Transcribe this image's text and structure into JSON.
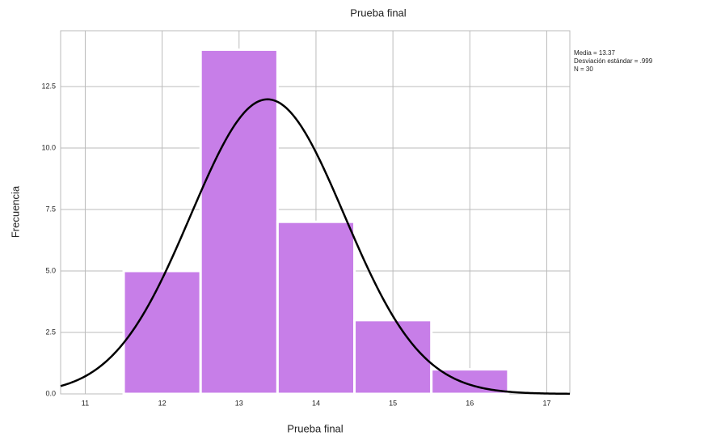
{
  "chart_data": {
    "type": "histogram",
    "title": "Prueba final",
    "x_label": "Prueba final",
    "y_label": "Frecuencia",
    "bins": [
      11.5,
      12.5,
      13.5,
      14.5,
      15.5,
      16.5
    ],
    "values": [
      5,
      14,
      7,
      3,
      1
    ],
    "color": "#c77ee8",
    "xlim": [
      10.68,
      17.3
    ],
    "ylim": [
      0,
      14.77
    ],
    "xticks": [
      11,
      12,
      13,
      14,
      15,
      16,
      17
    ],
    "yticks": [
      {
        "value": 0,
        "label": "0.0"
      },
      {
        "value": 2.5,
        "label": "2.5"
      },
      {
        "value": 5,
        "label": "5.0"
      },
      {
        "value": 7.5,
        "label": "7.5"
      },
      {
        "value": 10,
        "label": "10.0"
      },
      {
        "value": 12.5,
        "label": "12.5"
      }
    ],
    "grid": true,
    "stats": {
      "mean": {
        "value": 13.37,
        "label": "Media = 13.37"
      },
      "sd": {
        "value": 0.999,
        "label": "Desviación estándar = .999"
      },
      "n": {
        "value": 30,
        "label": "N = 30"
      }
    }
  }
}
